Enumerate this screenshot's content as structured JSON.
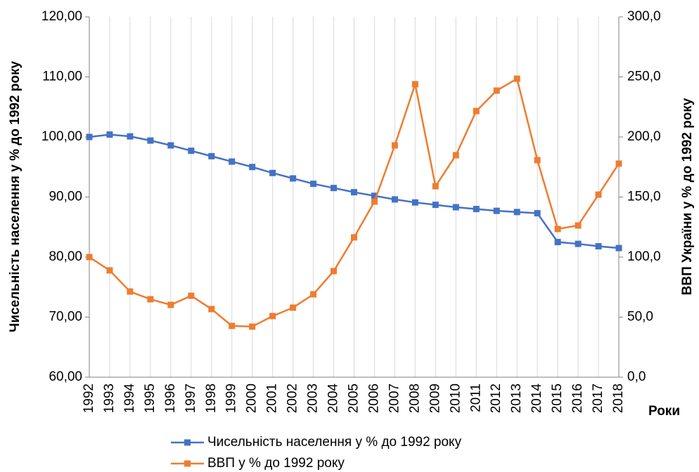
{
  "chart_data": {
    "type": "line",
    "y_label": "Чисельність населення у % до 1992 року",
    "y2_label": "ВВП України у % до 1992 року",
    "x_label": "Роки",
    "categories": [
      "1992",
      "1993",
      "1994",
      "1995",
      "1996",
      "1997",
      "1998",
      "1999",
      "2000",
      "2001",
      "2002",
      "2003",
      "2004",
      "2005",
      "2006",
      "2007",
      "2008",
      "2009",
      "2010",
      "2011",
      "2012",
      "2013",
      "2014",
      "2015",
      "2016",
      "2017",
      "2018"
    ],
    "series": [
      {
        "name": "Чисельність населення у % до 1992 року",
        "color": "#4472c4",
        "axis": "y",
        "values": [
          100,
          100.4,
          100.1,
          99.4,
          98.6,
          97.7,
          96.8,
          95.9,
          95.0,
          94.0,
          93.1,
          92.2,
          91.5,
          90.8,
          90.2,
          89.6,
          89.1,
          88.7,
          88.3,
          88.0,
          87.7,
          87.5,
          87.3,
          82.5,
          82.2,
          81.8,
          81.5
        ]
      },
      {
        "name": "ВВП у % до 1992 року",
        "color": "#ed7d31",
        "axis": "y2",
        "values": [
          100,
          88.9,
          71.3,
          64.9,
          60.2,
          67.8,
          56.7,
          42.7,
          42.1,
          50.9,
          57.9,
          69.0,
          88.3,
          116.4,
          146.2,
          193.0,
          243.9,
          159.0,
          184.8,
          221.6,
          238.6,
          248.5,
          180.7,
          123.4,
          126.3,
          152.0,
          177.8
        ]
      }
    ],
    "ylim": [
      60,
      120
    ],
    "yticks": [
      {
        "value": 60,
        "label": "60,00"
      },
      {
        "value": 70,
        "label": "70,00"
      },
      {
        "value": 80,
        "label": "80,00"
      },
      {
        "value": 90,
        "label": "90,00"
      },
      {
        "value": 100,
        "label": "100,00"
      },
      {
        "value": 110,
        "label": "110,00"
      },
      {
        "value": 120,
        "label": "120,00"
      }
    ],
    "y2lim": [
      0,
      300
    ],
    "y2ticks": [
      {
        "value": 0,
        "label": "0,0"
      },
      {
        "value": 50,
        "label": "50,0"
      },
      {
        "value": 100,
        "label": "100,0"
      },
      {
        "value": 150,
        "label": "150,0"
      },
      {
        "value": 200,
        "label": "200,0"
      },
      {
        "value": 250,
        "label": "250,0"
      },
      {
        "value": 300,
        "label": "300,0"
      }
    ],
    "grid": "x",
    "legend": "bottom"
  }
}
